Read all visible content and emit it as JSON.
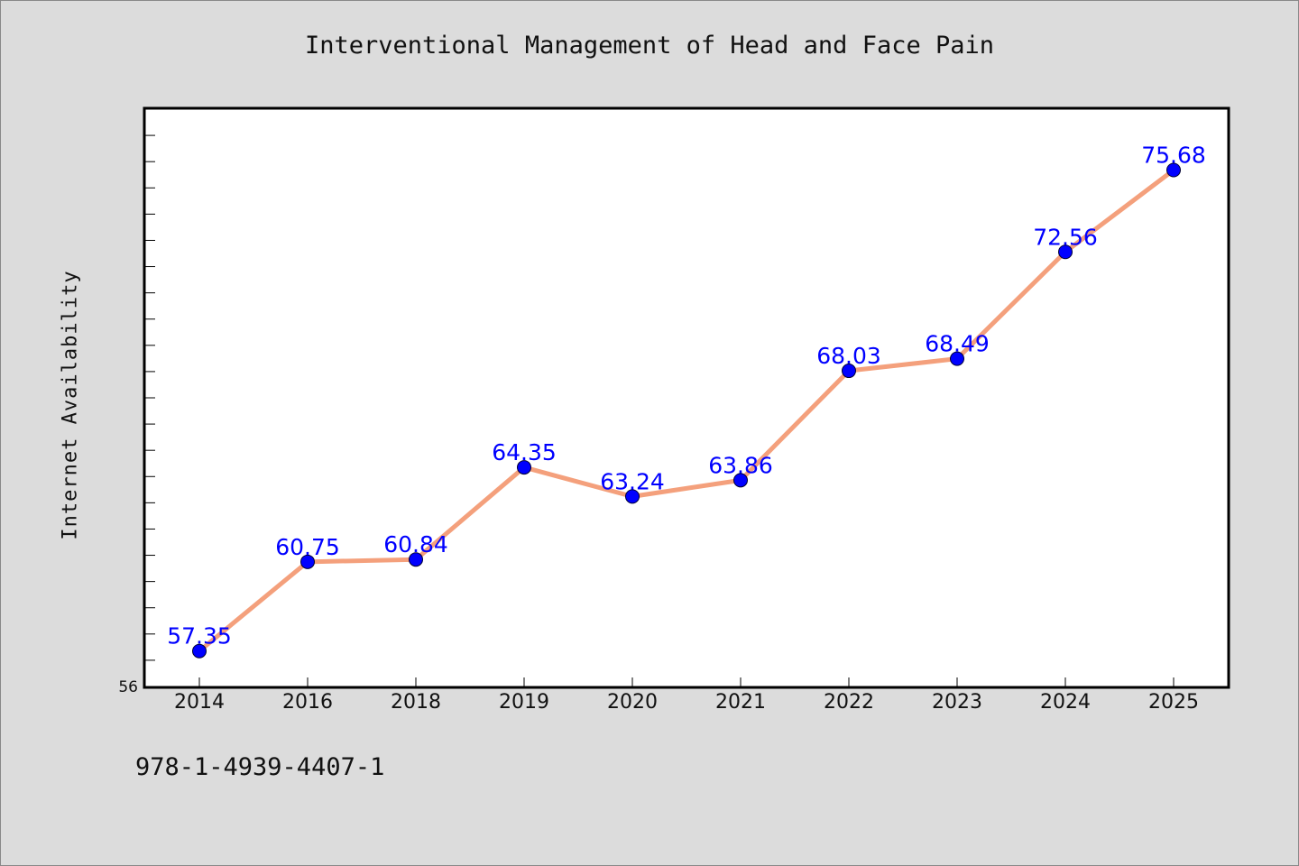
{
  "chart_data": {
    "type": "line",
    "title": "Interventional Management of Head and Face Pain",
    "xlabel": "",
    "ylabel": "Internet Availability",
    "categories": [
      "2014",
      "2016",
      "2018",
      "2019",
      "2020",
      "2021",
      "2022",
      "2023",
      "2024",
      "2025"
    ],
    "values": [
      57.35,
      60.75,
      60.84,
      64.35,
      63.24,
      63.86,
      68.03,
      68.49,
      72.56,
      75.68
    ],
    "data_labels": [
      "57.35",
      "60.75",
      "60.84",
      "64.35",
      "63.24",
      "63.86",
      "68.03",
      "68.49",
      "72.56",
      "75.68"
    ],
    "ylim": [
      56,
      78
    ],
    "y_tick_labels": [
      "56"
    ],
    "line_color": "#f4a07c",
    "marker_color": "#0000ff",
    "label_color": "#0000ff",
    "plot_background": "#ffffff",
    "page_background": "#dcdcdc",
    "grid": false
  },
  "footer": {
    "text": "978-1-4939-4407-1"
  }
}
